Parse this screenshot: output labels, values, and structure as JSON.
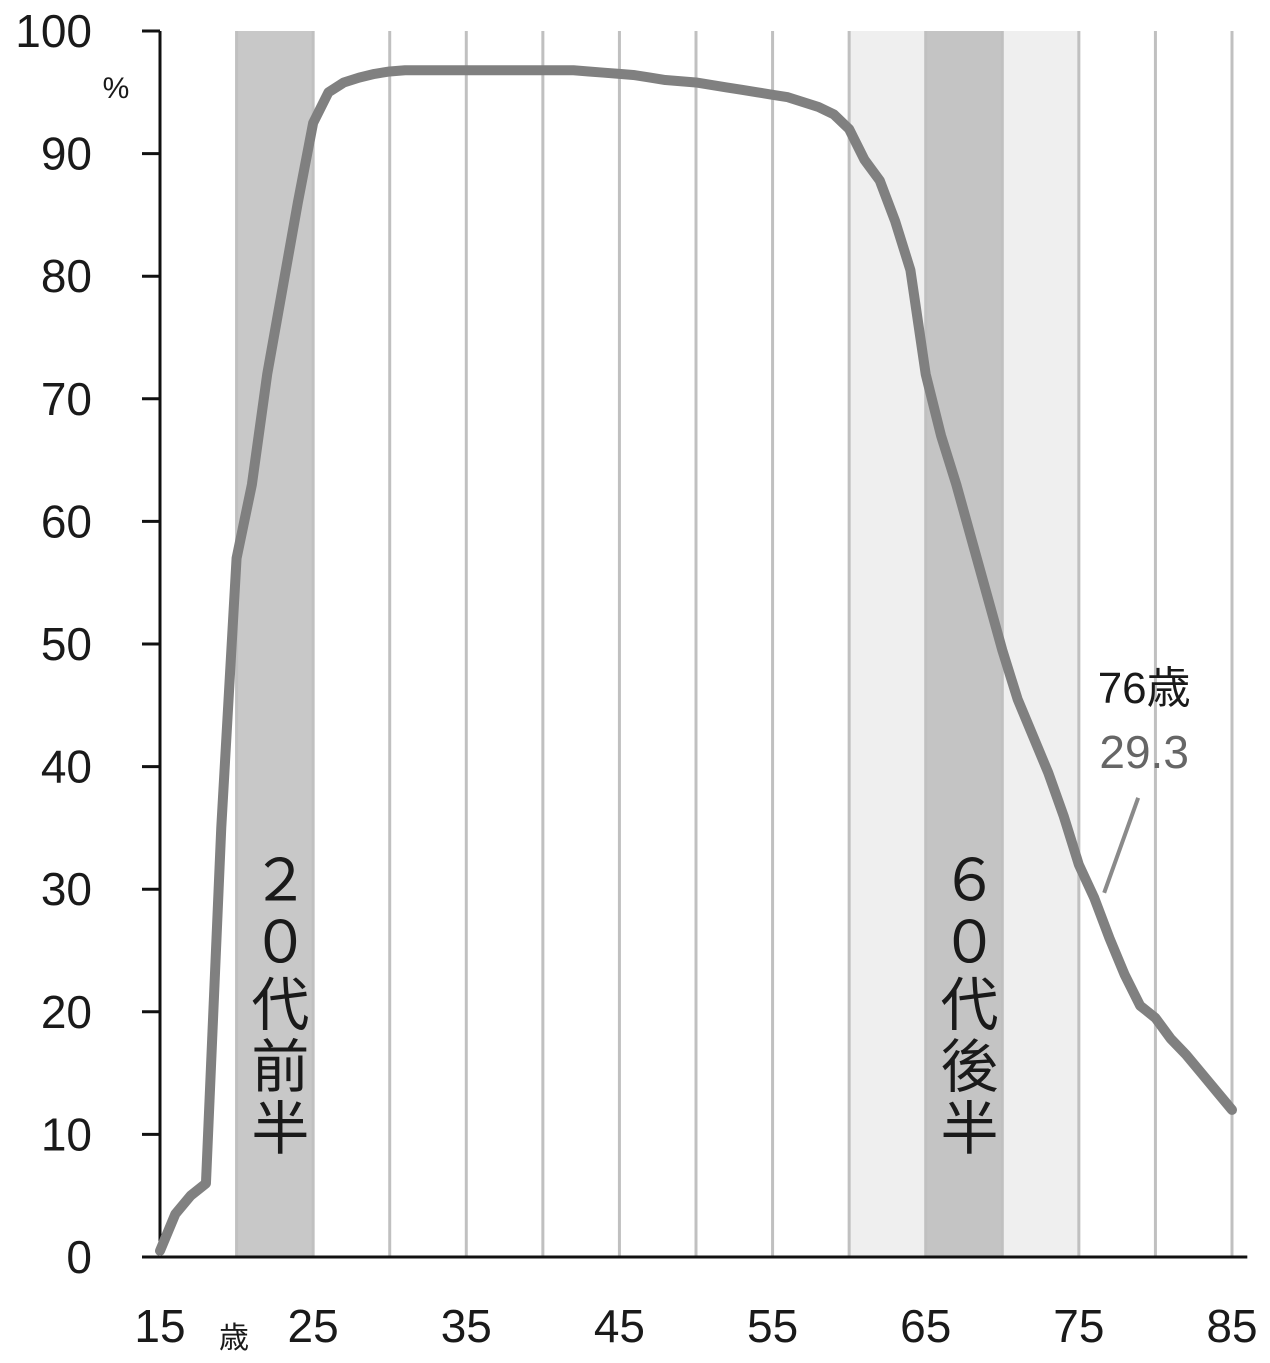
{
  "chart_data": {
    "type": "line",
    "x_unit": "歳",
    "y_unit": "%",
    "x": [
      15,
      16,
      17,
      18,
      19,
      20,
      21,
      22,
      23,
      24,
      25,
      26,
      27,
      28,
      29,
      30,
      31,
      32,
      33,
      34,
      35,
      36,
      37,
      38,
      39,
      40,
      41,
      42,
      43,
      44,
      45,
      46,
      47,
      48,
      49,
      50,
      51,
      52,
      53,
      54,
      55,
      56,
      57,
      58,
      59,
      60,
      61,
      62,
      63,
      64,
      65,
      66,
      67,
      68,
      69,
      70,
      71,
      72,
      73,
      74,
      75,
      76,
      77,
      78,
      79,
      80,
      81,
      82,
      83,
      84,
      85
    ],
    "series": [
      {
        "color": "#808080",
        "values": [
          0.5,
          3.5,
          5,
          6,
          35,
          57,
          63,
          72,
          79,
          86,
          92.5,
          95,
          95.8,
          96.2,
          96.5,
          96.7,
          96.8,
          96.8,
          96.8,
          96.8,
          96.8,
          96.8,
          96.8,
          96.8,
          96.8,
          96.8,
          96.8,
          96.8,
          96.7,
          96.6,
          96.5,
          96.4,
          96.2,
          96,
          95.9,
          95.8,
          95.6,
          95.4,
          95.2,
          95,
          94.8,
          94.6,
          94.2,
          93.8,
          93.2,
          92,
          89.5,
          87.8,
          84.5,
          80.5,
          72,
          67,
          63,
          58.5,
          54,
          49.5,
          45.5,
          42.5,
          39.5,
          36,
          32,
          29.3,
          26,
          23,
          20.5,
          19.5,
          17.8,
          16.5,
          15,
          13.5,
          12
        ]
      }
    ],
    "xlim": [
      15,
      86
    ],
    "ylim": [
      0,
      100
    ],
    "xticks": [
      15,
      25,
      35,
      45,
      55,
      65,
      75,
      85
    ],
    "xgrid": [
      20,
      25,
      30,
      35,
      40,
      45,
      50,
      55,
      60,
      65,
      70,
      75,
      80,
      85
    ],
    "yticks": [
      0,
      10,
      20,
      30,
      40,
      50,
      60,
      70,
      80,
      90,
      100
    ],
    "bands": [
      {
        "from": 20,
        "to": 25,
        "color": "#c8c8c8",
        "label": "２０代前半"
      },
      {
        "from": 60,
        "to": 75,
        "color": "#efefef"
      },
      {
        "from": 65,
        "to": 70,
        "color": "#c4c4c4",
        "label": "６０代後半"
      }
    ],
    "annotation": {
      "x": 76,
      "label": "76歳",
      "value": 29.3
    }
  }
}
